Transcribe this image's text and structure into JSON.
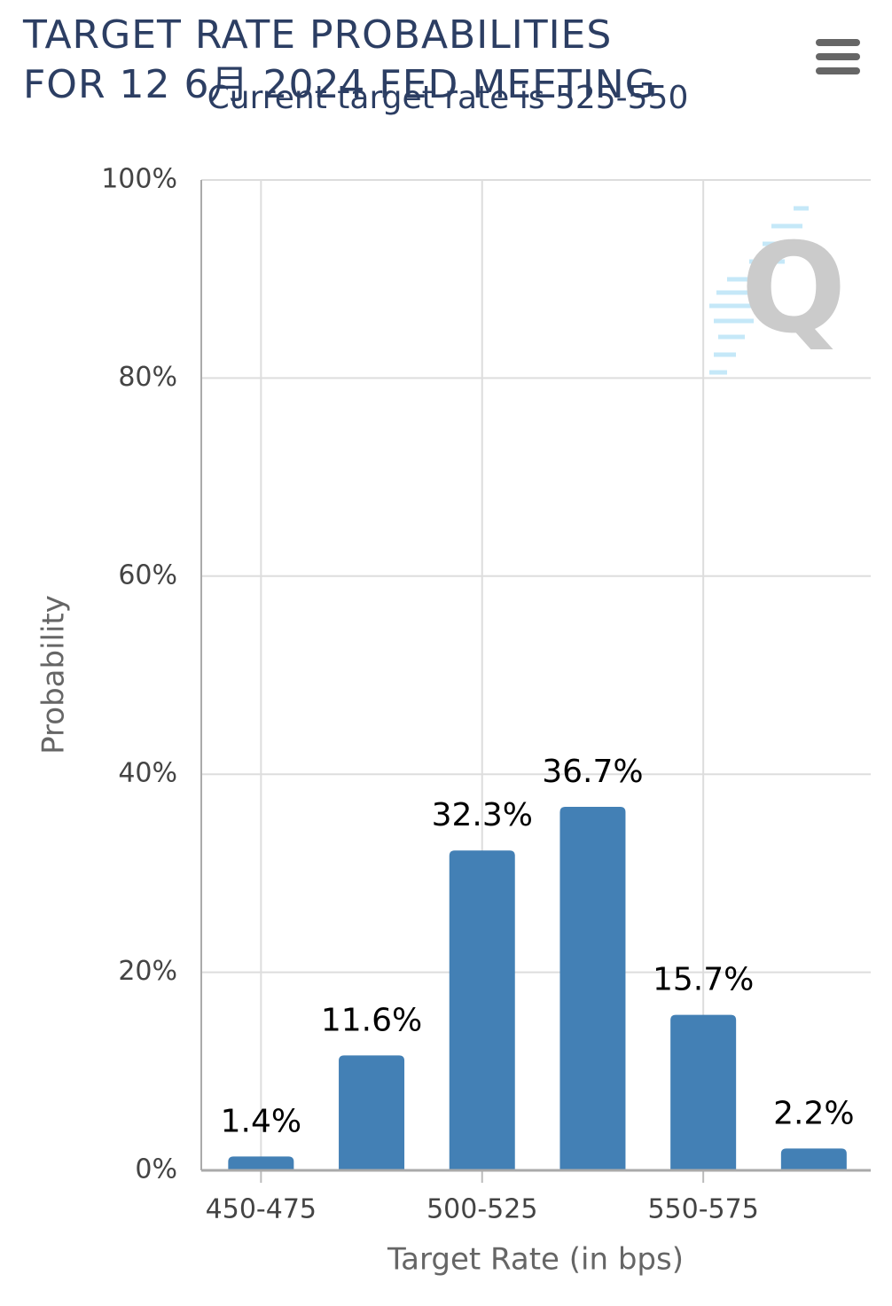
{
  "chart_data": {
    "type": "bar",
    "title": "TARGET RATE PROBABILITIES FOR 12 6月 2024 FED MEETING",
    "subtitle": "Current target rate is 525-550",
    "x_label": "Target Rate (in bps)",
    "y_label": "Probability",
    "categories": [
      "450-475",
      null,
      "500-525",
      null,
      "550-575",
      null
    ],
    "values": [
      1.4,
      11.6,
      32.3,
      36.7,
      15.7,
      2.2
    ],
    "value_labels": [
      "1.4%",
      "11.6%",
      "32.3%",
      "36.7%",
      "15.7%",
      "2.2%"
    ],
    "color": "#4380b5",
    "ylim": [
      0,
      100
    ],
    "yticks": [
      {
        "value": 0,
        "label": "0%"
      },
      {
        "value": 20,
        "label": "20%"
      },
      {
        "value": 40,
        "label": "40%"
      },
      {
        "value": 60,
        "label": "60%"
      },
      {
        "value": 80,
        "label": "80%"
      },
      {
        "value": 100,
        "label": "100%"
      }
    ],
    "grid": true
  }
}
